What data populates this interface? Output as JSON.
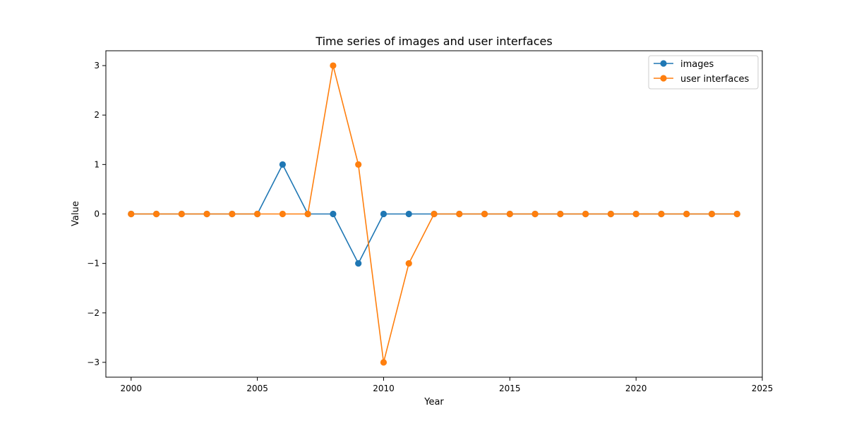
{
  "chart_data": {
    "type": "line",
    "title": "Time series of images and user interfaces",
    "xlabel": "Year",
    "ylabel": "Value",
    "xlim": [
      1999,
      2025
    ],
    "ylim": [
      -3.3,
      3.3
    ],
    "xticks": [
      2000,
      2005,
      2010,
      2015,
      2020,
      2025
    ],
    "yticks": [
      -3,
      -2,
      -1,
      0,
      1,
      2,
      3
    ],
    "grid": false,
    "legend_position": "top-right",
    "x": [
      2000,
      2001,
      2002,
      2003,
      2004,
      2005,
      2006,
      2007,
      2008,
      2009,
      2010,
      2011,
      2012,
      2013,
      2014,
      2015,
      2016,
      2017,
      2018,
      2019,
      2020,
      2021,
      2022,
      2023,
      2024
    ],
    "series": [
      {
        "name": "images",
        "color": "#1f77b4",
        "values": [
          0,
          0,
          0,
          0,
          0,
          0,
          1,
          0,
          0,
          -1,
          0,
          0,
          0,
          0,
          0,
          0,
          0,
          0,
          0,
          0,
          0,
          0,
          0,
          0,
          0
        ]
      },
      {
        "name": "user interfaces",
        "color": "#ff7f0e",
        "values": [
          0,
          0,
          0,
          0,
          0,
          0,
          0,
          0,
          3,
          1,
          -3,
          -1,
          0,
          0,
          0,
          0,
          0,
          0,
          0,
          0,
          0,
          0,
          0,
          0,
          0
        ]
      }
    ]
  }
}
